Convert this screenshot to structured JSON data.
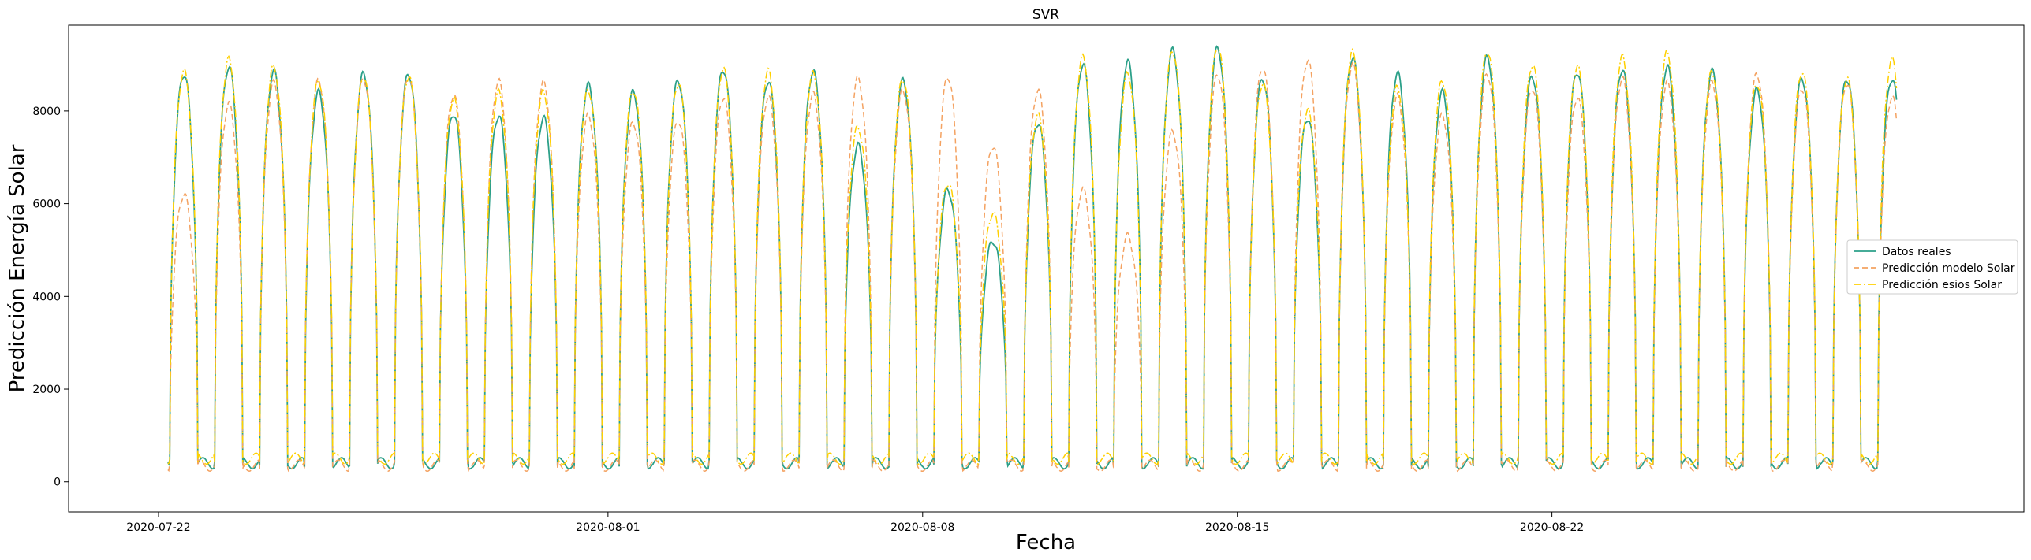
{
  "chart_data": {
    "type": "line",
    "title": "SVR",
    "xlabel": "Fecha",
    "ylabel": "Predicción Energía Solar",
    "x_ticks": [
      "2020-07-22",
      "2020-08-01",
      "2020-08-08",
      "2020-08-15",
      "2020-08-22"
    ],
    "y_ticks": [
      "0",
      "2000",
      "4000",
      "6000",
      "8000"
    ],
    "xlim": [
      "2020-07-20T00:00",
      "2020-09-01T12:00"
    ],
    "ylim": [
      -650,
      9850
    ],
    "grid": false,
    "legend_position": "right",
    "x_start": "2020-07-22T00:00",
    "x_step_days": 1,
    "series": [
      {
        "name": "Datos reales",
        "color": "#2ca089",
        "style": "solid",
        "daily_peaks": [
          8800,
          8950,
          8850,
          8400,
          8800,
          8800,
          7950,
          7900,
          7850,
          8550,
          8400,
          8650,
          8900,
          8650,
          8850,
          7250,
          8650,
          6300,
          5200,
          7750,
          9000,
          9050,
          9300,
          9350,
          8700,
          7850,
          9150,
          8800,
          8400,
          9150,
          8750,
          8850,
          8900,
          8950,
          8850,
          8450,
          8700,
          8700,
          8700
        ],
        "night_level": 400
      },
      {
        "name": "Predicción modelo Solar",
        "color": "#f4a261",
        "style": "dashed",
        "daily_peaks": [
          6200,
          8150,
          8600,
          8650,
          8700,
          8750,
          8350,
          8650,
          8600,
          7900,
          7750,
          7800,
          8300,
          8300,
          8350,
          8700,
          8450,
          8750,
          7250,
          8450,
          6300,
          5300,
          7550,
          8800,
          8950,
          9100,
          9000,
          8300,
          7900,
          8800,
          8500,
          8300,
          8700,
          8600,
          8600,
          8800,
          8500,
          8600,
          8300
        ],
        "night_level": 350
      },
      {
        "name": "Predicción esios Solar",
        "color": "#ffd000",
        "style": "dashdot",
        "daily_peaks": [
          8850,
          9100,
          8950,
          8650,
          8750,
          8750,
          8250,
          8400,
          8400,
          8450,
          8450,
          8600,
          8900,
          8850,
          8800,
          7650,
          8700,
          6450,
          5800,
          7900,
          9150,
          8800,
          9300,
          9400,
          8600,
          8000,
          9250,
          8500,
          8650,
          9300,
          9000,
          8950,
          9150,
          9250,
          8850,
          8600,
          8850,
          8700,
          9100
        ],
        "night_level": 500
      }
    ]
  }
}
